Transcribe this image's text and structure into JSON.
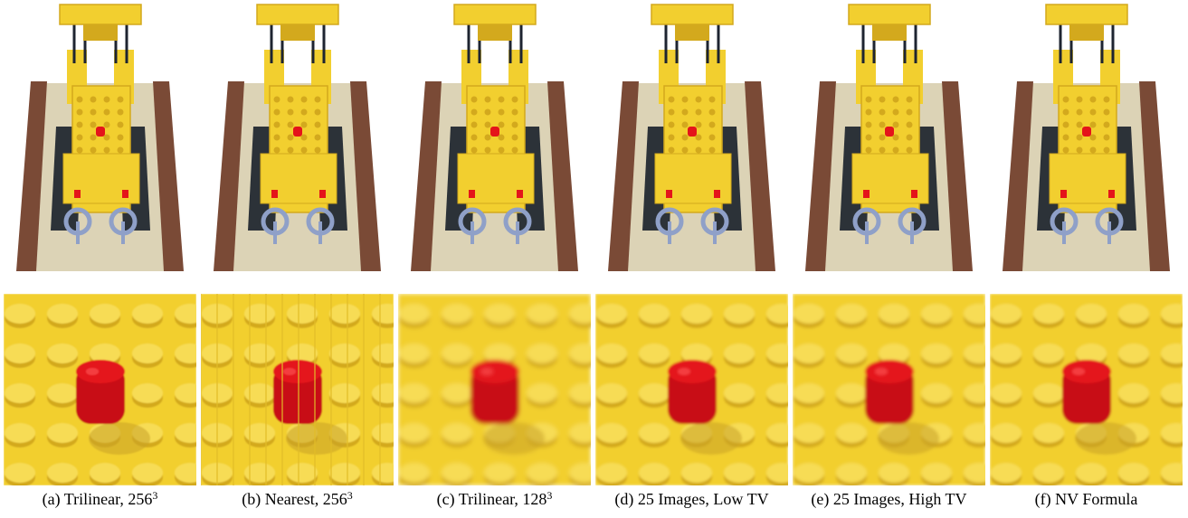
{
  "panels": [
    {
      "letter": "(a)",
      "label": "Trilinear, 256",
      "sup": "3",
      "blur": 0,
      "pixelated": false
    },
    {
      "letter": "(b)",
      "label": "Nearest, 256",
      "sup": "3",
      "blur": 0,
      "pixelated": true
    },
    {
      "letter": "(c)",
      "label": "Trilinear, 128",
      "sup": "3",
      "blur": 1.5,
      "pixelated": false
    },
    {
      "letter": "(d)",
      "label": "25 Images, Low TV",
      "sup": "",
      "blur": 0.6,
      "pixelated": false
    },
    {
      "letter": "(e)",
      "label": "25 Images, High TV",
      "sup": "",
      "blur": 0.9,
      "pixelated": false
    },
    {
      "letter": "(f)",
      "label": "NV Formula",
      "sup": "",
      "blur": 0.4,
      "pixelated": false
    }
  ],
  "colors": {
    "lego_yellow": "#f2cf2f",
    "lego_yellow_dark": "#d3a91d",
    "lego_red": "#e4141a",
    "baseplate": "#dcd3b6",
    "track_dark": "#2c3238",
    "brown_rail": "#7a4a36",
    "steel": "#8fa0c8"
  }
}
